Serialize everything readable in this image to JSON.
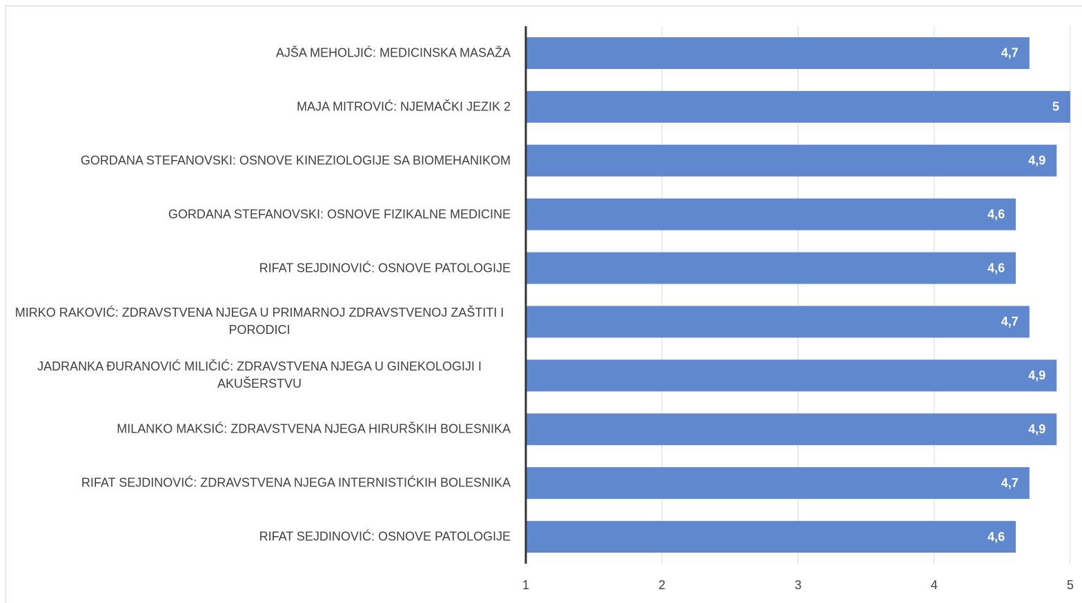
{
  "chart_data": {
    "type": "barh",
    "categories": [
      "AJŠA MEHOLJIĆ: MEDICINSKA MASAŽA",
      "MAJA MITROVIĆ: NJEMAČKI JEZIK 2",
      "GORDANA STEFANOVSKI: OSNOVE KINEZIOLOGIJE SA BIOMEHANIKOM",
      "GORDANA STEFANOVSKI: OSNOVE FIZIKALNE MEDICINE",
      "RIFAT SEJDINOVIĆ: OSNOVE PATOLOGIJE",
      "MIRKO RAKOVIĆ: ZDRAVSTVENA NJEGA U PRIMARNOJ ZDRAVSTVENOJ ZAŠTITI I PORODICI",
      "JADRANKA ĐURANOVIĆ MILIČIĆ: ZDRAVSTVENA NJEGA U GINEKOLOGIJI I AKUŠERSTVU",
      "MILANKO MAKSIĆ: ZDRAVSTVENA NJEGA HIRURŠKIH BOLESNIKA",
      "RIFAT SEJDINOVIĆ: ZDRAVSTVENA NJEGA INTERNISTIĆKIH BOLESNIKA",
      "RIFAT SEJDINOVIĆ: OSNOVE PATOLOGIJE"
    ],
    "values": [
      4.7,
      5,
      4.9,
      4.6,
      4.6,
      4.7,
      4.9,
      4.9,
      4.7,
      4.6
    ],
    "value_labels": [
      "4,7",
      "5",
      "4,9",
      "4,6",
      "4,6",
      "4,7",
      "4,9",
      "4,9",
      "4,7",
      "4,6"
    ],
    "color": "#5f88cf",
    "xlim": [
      1,
      5
    ],
    "xticks": [
      1,
      2,
      3,
      4,
      5
    ],
    "grid": true
  }
}
